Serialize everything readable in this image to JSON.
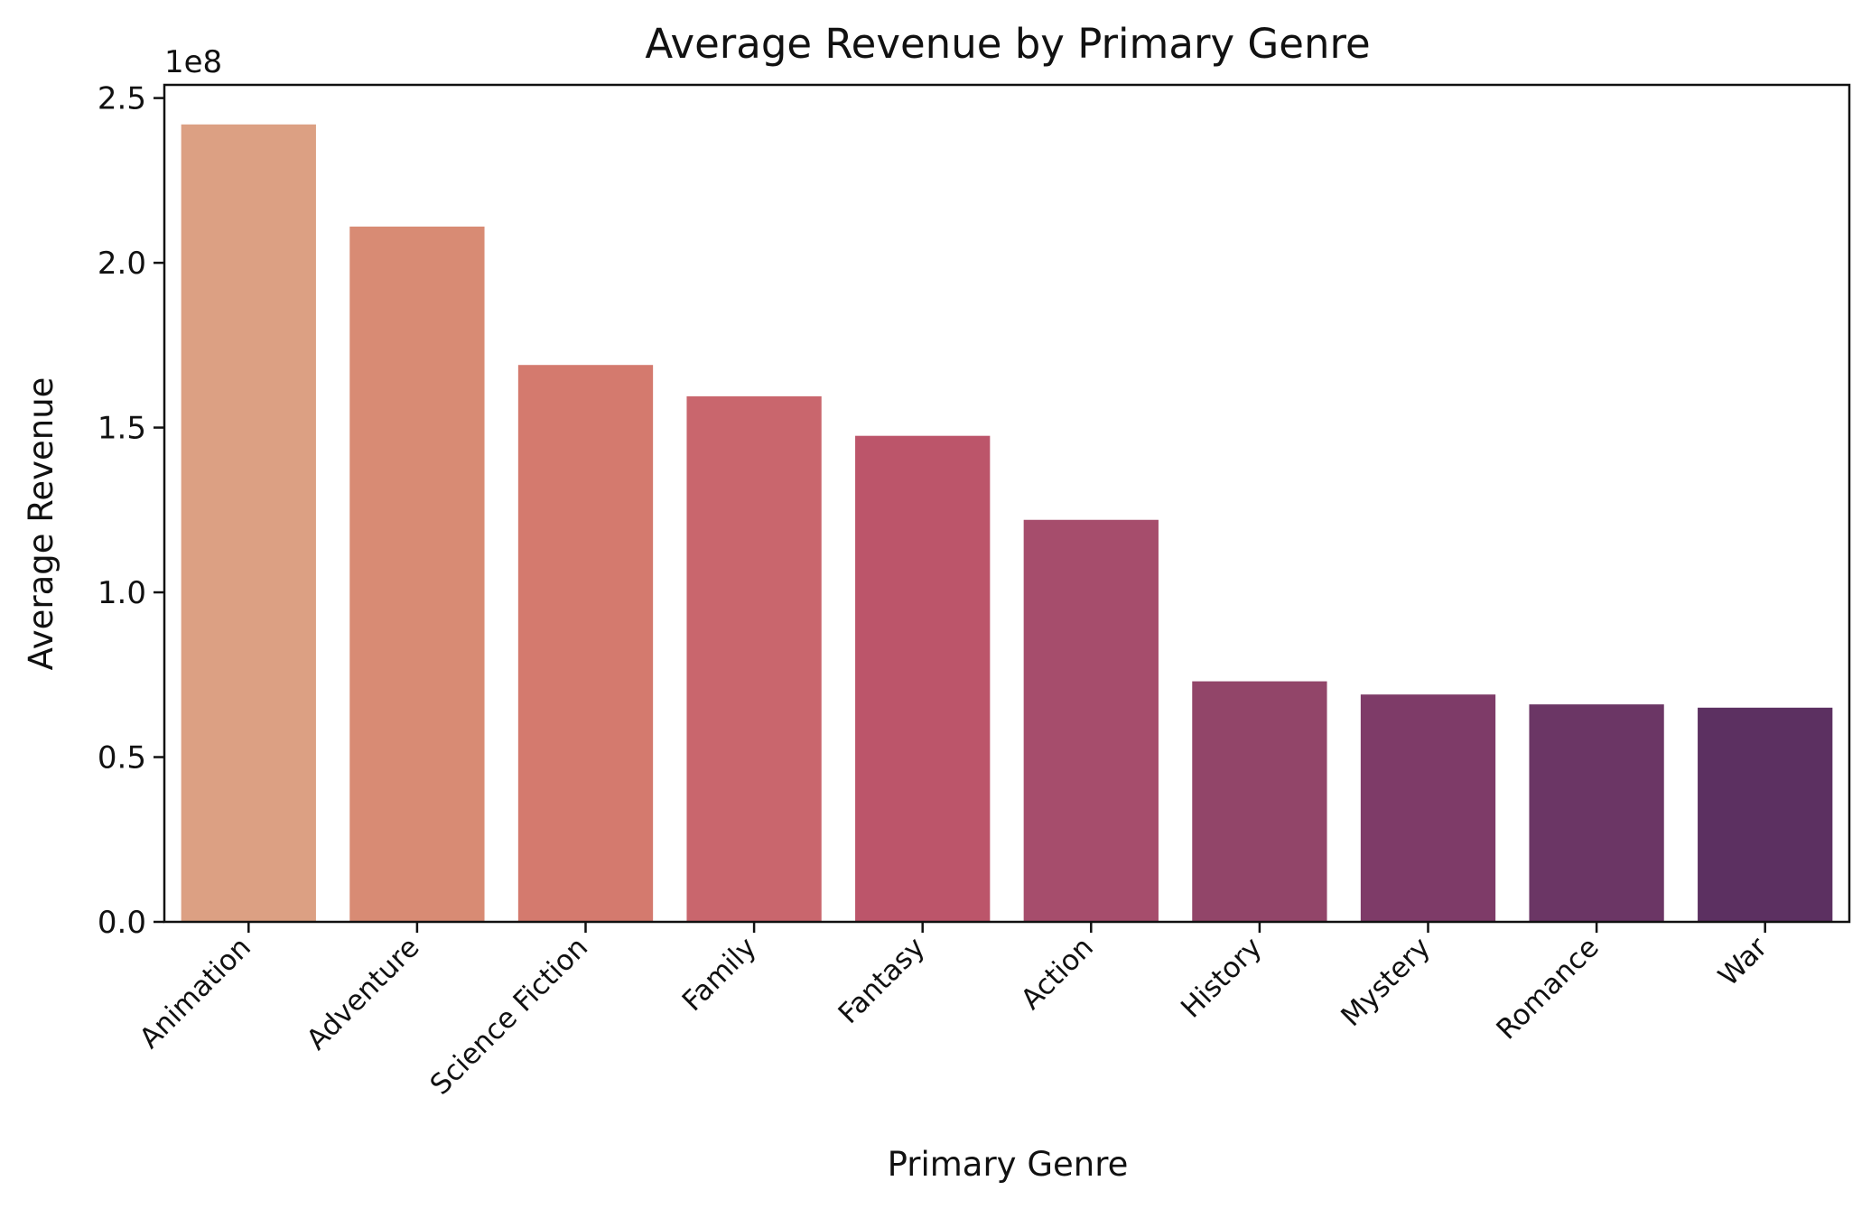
{
  "chart_data": {
    "type": "bar",
    "title": "Average Revenue by Primary Genre",
    "xlabel": "Primary Genre",
    "ylabel": "Average Revenue",
    "y_offset_label": "1e8",
    "categories": [
      "Animation",
      "Adventure",
      "Science Fiction",
      "Family",
      "Fantasy",
      "Action",
      "History",
      "Mystery",
      "Romance",
      "War"
    ],
    "values": [
      2.42,
      2.11,
      1.69,
      1.595,
      1.475,
      1.22,
      0.73,
      0.69,
      0.66,
      0.65
    ],
    "ylim": [
      0,
      2.54
    ],
    "yticks": [
      0.0,
      0.5,
      1.0,
      1.5,
      2.0,
      2.5
    ],
    "ytick_labels": [
      "0.0",
      "0.5",
      "1.0",
      "1.5",
      "2.0",
      "2.5"
    ],
    "colors": [
      "#dca083",
      "#d88b74",
      "#d47a6e",
      "#c9666d",
      "#bc556a",
      "#a64d6c",
      "#924569",
      "#7e3b68",
      "#6b3665",
      "#5c3061"
    ],
    "grid": false,
    "legend": "none"
  }
}
